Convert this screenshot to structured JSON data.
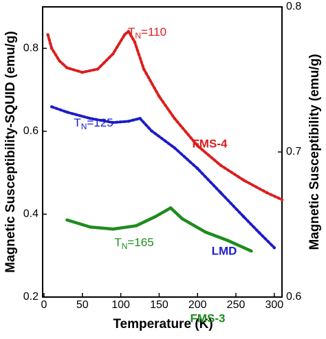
{
  "chart_data": {
    "type": "line",
    "x_label": "Temperature (K)",
    "y_label": "Magnetic Susceptibility-SQUID (emu/g)",
    "y2_label": "Magnetic Susceptibility (emu/g)",
    "xlim": [
      0,
      310
    ],
    "xticks": [
      0,
      50,
      100,
      150,
      200,
      250,
      300
    ],
    "ylim": [
      0.2,
      0.9
    ],
    "yticks": [
      0.2,
      0.4,
      0.6,
      0.8
    ],
    "y2lim": [
      0.6,
      0.8
    ],
    "y2ticks": [
      0.6,
      0.7,
      0.8
    ],
    "series": [
      {
        "name": "FMS-4",
        "color": "#dd1c1c",
        "x": [
          5,
          10,
          20,
          30,
          50,
          70,
          90,
          105,
          110,
          118,
          130,
          150,
          170,
          200,
          230,
          260,
          290,
          310
        ],
        "values": [
          0.833,
          0.8,
          0.77,
          0.753,
          0.742,
          0.75,
          0.787,
          0.833,
          0.841,
          0.816,
          0.75,
          0.684,
          0.631,
          0.565,
          0.518,
          0.482,
          0.452,
          0.435
        ]
      },
      {
        "name": "LMD",
        "color": "#1c1cc8",
        "x": [
          10,
          30,
          60,
          90,
          110,
          125,
          140,
          170,
          200,
          230,
          260,
          280,
          300
        ],
        "values": [
          0.659,
          0.646,
          0.631,
          0.621,
          0.624,
          0.631,
          0.601,
          0.56,
          0.51,
          0.452,
          0.394,
          0.356,
          0.319
        ]
      },
      {
        "name": "FMS-3",
        "color": "#1e8c1e",
        "x": [
          30,
          60,
          90,
          120,
          145,
          165,
          180,
          210,
          240,
          270
        ],
        "values": [
          0.386,
          0.369,
          0.364,
          0.372,
          0.394,
          0.415,
          0.389,
          0.357,
          0.336,
          0.311
        ]
      }
    ],
    "annotations": [
      {
        "parts": [
          "T",
          "N",
          "=110"
        ],
        "color": "#dd1c1c"
      },
      {
        "parts": [
          "T",
          "N",
          "=125"
        ],
        "color": "#1c1cc8"
      },
      {
        "parts": [
          "T",
          "N",
          "=165"
        ],
        "color": "#1e8c1e"
      }
    ]
  }
}
